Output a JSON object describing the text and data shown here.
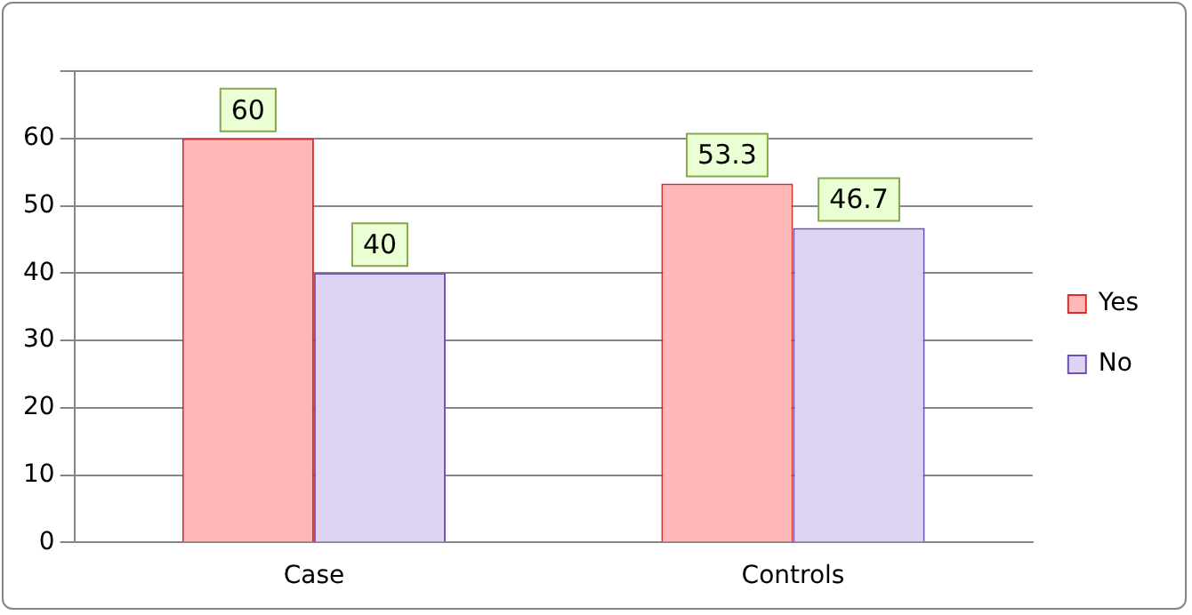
{
  "chart_data": {
    "type": "bar",
    "categories": [
      "Case",
      "Controls"
    ],
    "series": [
      {
        "name": "Yes",
        "color": "#ffb8b8",
        "values": [
          60,
          53.3
        ]
      },
      {
        "name": "No",
        "color": "#ddd3f2",
        "values": [
          40,
          46.7
        ]
      }
    ],
    "ylim": [
      0,
      70
    ],
    "yticks": [
      0,
      10,
      20,
      30,
      40,
      50,
      60,
      {
        "value": 70,
        "label": null
      }
    ],
    "grid": "y",
    "legend": "right",
    "data_labels": true
  }
}
